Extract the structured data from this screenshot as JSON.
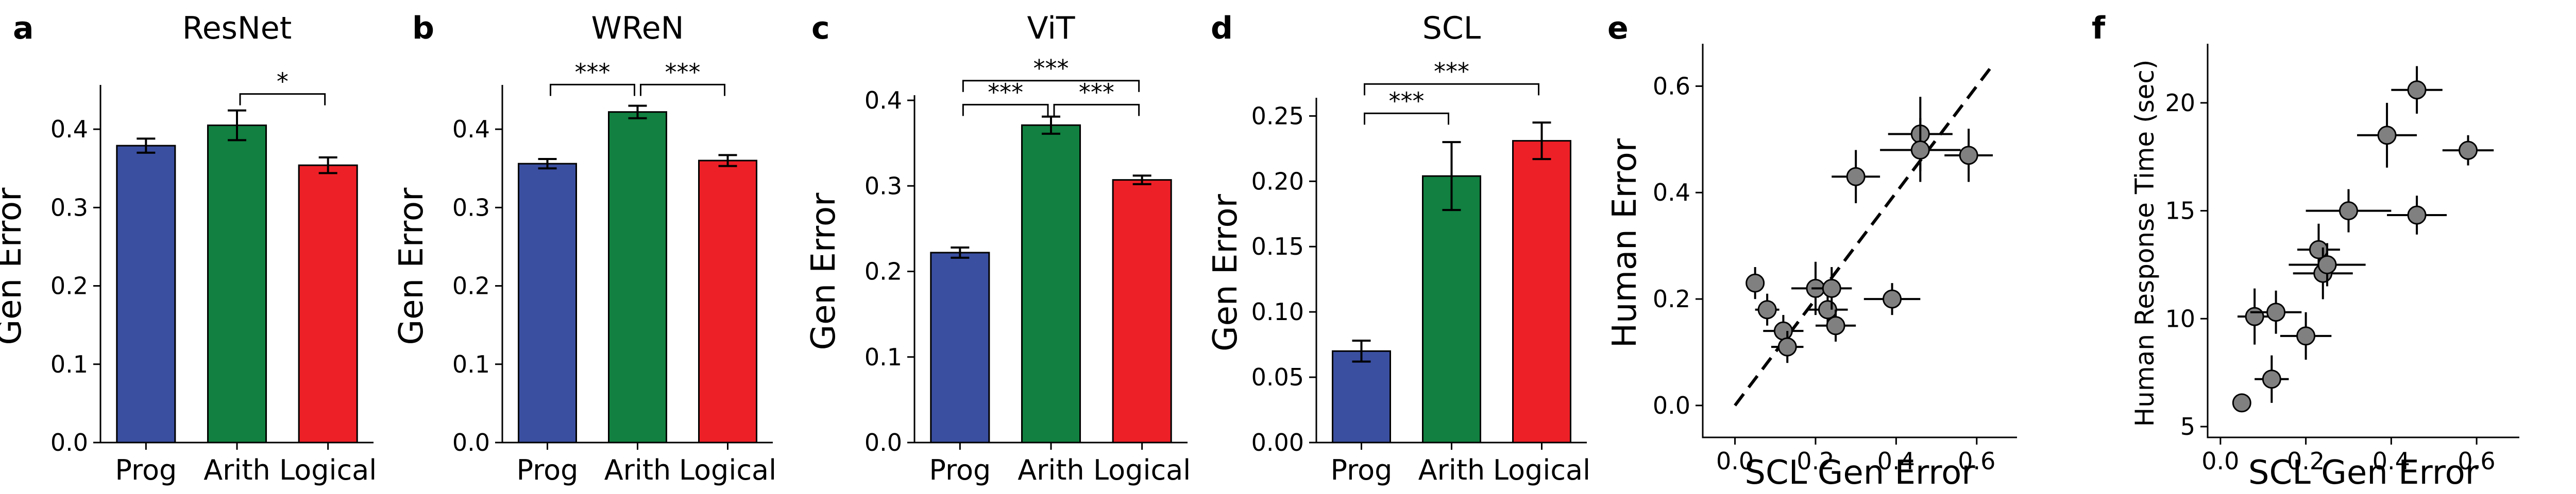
{
  "chart_data": [
    {
      "id": "a",
      "type": "bar",
      "letter": "a",
      "title": "ResNet",
      "categories": [
        "Prog",
        "Arith",
        "Logical"
      ],
      "values": [
        0.379,
        0.405,
        0.354
      ],
      "errors": [
        0.009,
        0.019,
        0.01
      ],
      "colors": [
        "#3a4fa0",
        "#118040",
        "#ee2027"
      ],
      "ylabel": "Gen Error",
      "ylim": [
        0,
        0.45
      ],
      "yticks": [
        0.0,
        0.1,
        0.2,
        0.3,
        0.4
      ],
      "ytick_labels": [
        "0.0",
        "0.1",
        "0.2",
        "0.3",
        "0.4"
      ],
      "significance": [
        {
          "from": 1,
          "to": 2,
          "label": "*",
          "value": 0.445
        }
      ]
    },
    {
      "id": "b",
      "type": "bar",
      "letter": "b",
      "title": "WReN",
      "categories": [
        "Prog",
        "Arith",
        "Logical"
      ],
      "values": [
        0.356,
        0.422,
        0.36
      ],
      "errors": [
        0.006,
        0.008,
        0.007
      ],
      "colors": [
        "#3a4fa0",
        "#118040",
        "#ee2027"
      ],
      "ylabel": "Gen Error",
      "ylim": [
        0,
        0.45
      ],
      "yticks": [
        0.0,
        0.1,
        0.2,
        0.3,
        0.4
      ],
      "ytick_labels": [
        "0.0",
        "0.1",
        "0.2",
        "0.3",
        "0.4"
      ],
      "significance": [
        {
          "from": 0,
          "to": 1,
          "label": "***",
          "value": 0.457
        },
        {
          "from": 1,
          "to": 2,
          "label": "***",
          "value": 0.457
        }
      ]
    },
    {
      "id": "c",
      "type": "bar",
      "letter": "c",
      "title": "ViT",
      "categories": [
        "Prog",
        "Arith",
        "Logical"
      ],
      "values": [
        0.222,
        0.371,
        0.307
      ],
      "errors": [
        0.006,
        0.01,
        0.005
      ],
      "colors": [
        "#3a4fa0",
        "#118040",
        "#ee2027"
      ],
      "ylabel": "Gen Error",
      "ylim": [
        0,
        0.4
      ],
      "yticks": [
        0.0,
        0.1,
        0.2,
        0.3,
        0.4
      ],
      "ytick_labels": [
        "0.0",
        "0.1",
        "0.2",
        "0.3",
        "0.4"
      ],
      "significance": [
        {
          "from": 0,
          "to": 1,
          "label": "***",
          "value": 0.395
        },
        {
          "from": 1,
          "to": 2,
          "label": "***",
          "value": 0.395
        },
        {
          "from": 0,
          "to": 2,
          "label": "***",
          "value": 0.423
        }
      ]
    },
    {
      "id": "d",
      "type": "bar",
      "letter": "d",
      "title": "SCL",
      "categories": [
        "Prog",
        "Arith",
        "Logical"
      ],
      "values": [
        0.07,
        0.204,
        0.231
      ],
      "errors": [
        0.008,
        0.026,
        0.014
      ],
      "colors": [
        "#3a4fa0",
        "#118040",
        "#ee2027"
      ],
      "ylabel": "Gen Error",
      "ylim": [
        0,
        0.26
      ],
      "yticks": [
        0.0,
        0.05,
        0.1,
        0.15,
        0.2,
        0.25
      ],
      "ytick_labels": [
        "0.00",
        "0.05",
        "0.10",
        "0.15",
        "0.20",
        "0.25"
      ],
      "significance": [
        {
          "from": 0,
          "to": 1,
          "label": "***",
          "value": 0.252
        },
        {
          "from": 0,
          "to": 2,
          "label": "***",
          "value": 0.2745
        }
      ]
    },
    {
      "id": "e",
      "type": "scatter",
      "letter": "e",
      "xlabel": "SCL Gen Error",
      "ylabel": "Human Error",
      "xlim": [
        -0.08,
        0.7
      ],
      "ylim": [
        -0.06,
        0.67
      ],
      "xticks": [
        0.0,
        0.2,
        0.4,
        0.6
      ],
      "xtick_labels": [
        "0.0",
        "0.2",
        "0.4",
        "0.6"
      ],
      "yticks": [
        0.0,
        0.2,
        0.4,
        0.6
      ],
      "ytick_labels": [
        "0.0",
        "0.2",
        "0.4",
        "0.6"
      ],
      "diagonal": true,
      "marker_color": "#808080",
      "points": [
        {
          "x": 0.05,
          "y": 0.23,
          "xerr": 0.02,
          "yerr": 0.03
        },
        {
          "x": 0.08,
          "y": 0.18,
          "xerr": 0.03,
          "yerr": 0.03
        },
        {
          "x": 0.12,
          "y": 0.14,
          "xerr": 0.05,
          "yerr": 0.03
        },
        {
          "x": 0.13,
          "y": 0.11,
          "xerr": 0.04,
          "yerr": 0.03
        },
        {
          "x": 0.2,
          "y": 0.22,
          "xerr": 0.06,
          "yerr": 0.05
        },
        {
          "x": 0.23,
          "y": 0.18,
          "xerr": 0.05,
          "yerr": 0.03
        },
        {
          "x": 0.24,
          "y": 0.22,
          "xerr": 0.05,
          "yerr": 0.04
        },
        {
          "x": 0.25,
          "y": 0.15,
          "xerr": 0.05,
          "yerr": 0.03
        },
        {
          "x": 0.3,
          "y": 0.43,
          "xerr": 0.06,
          "yerr": 0.05
        },
        {
          "x": 0.39,
          "y": 0.2,
          "xerr": 0.07,
          "yerr": 0.03
        },
        {
          "x": 0.46,
          "y": 0.51,
          "xerr": 0.08,
          "yerr": 0.07
        },
        {
          "x": 0.46,
          "y": 0.48,
          "xerr": 0.1,
          "yerr": 0.06
        },
        {
          "x": 0.58,
          "y": 0.47,
          "xerr": 0.06,
          "yerr": 0.05
        }
      ]
    },
    {
      "id": "f",
      "type": "scatter",
      "letter": "f",
      "xlabel": "SCL Gen Error",
      "ylabel": "Human Response Time (sec)",
      "xlim": [
        -0.03,
        0.7
      ],
      "ylim": [
        4.5,
        22.5
      ],
      "xticks": [
        0.0,
        0.2,
        0.4,
        0.6
      ],
      "xtick_labels": [
        "0.0",
        "0.2",
        "0.4",
        "0.6"
      ],
      "yticks": [
        5,
        10,
        15,
        20
      ],
      "ytick_labels": [
        "5",
        "10",
        "15",
        "20"
      ],
      "diagonal": false,
      "marker_color": "#808080",
      "points": [
        {
          "x": 0.05,
          "y": 6.1,
          "xerr": 0.02,
          "yerr": 0.4
        },
        {
          "x": 0.08,
          "y": 10.1,
          "xerr": 0.04,
          "yerr": 1.3
        },
        {
          "x": 0.12,
          "y": 7.2,
          "xerr": 0.04,
          "yerr": 1.1
        },
        {
          "x": 0.13,
          "y": 10.3,
          "xerr": 0.06,
          "yerr": 1.0
        },
        {
          "x": 0.2,
          "y": 9.2,
          "xerr": 0.06,
          "yerr": 1.1
        },
        {
          "x": 0.23,
          "y": 13.2,
          "xerr": 0.05,
          "yerr": 1.2
        },
        {
          "x": 0.24,
          "y": 12.1,
          "xerr": 0.07,
          "yerr": 1.2
        },
        {
          "x": 0.25,
          "y": 12.5,
          "xerr": 0.09,
          "yerr": 1.0
        },
        {
          "x": 0.3,
          "y": 15.0,
          "xerr": 0.1,
          "yerr": 1.0
        },
        {
          "x": 0.39,
          "y": 18.5,
          "xerr": 0.07,
          "yerr": 1.5
        },
        {
          "x": 0.46,
          "y": 20.6,
          "xerr": 0.06,
          "yerr": 1.1
        },
        {
          "x": 0.46,
          "y": 14.8,
          "xerr": 0.07,
          "yerr": 0.9
        },
        {
          "x": 0.58,
          "y": 17.8,
          "xerr": 0.06,
          "yerr": 0.7
        }
      ]
    }
  ]
}
